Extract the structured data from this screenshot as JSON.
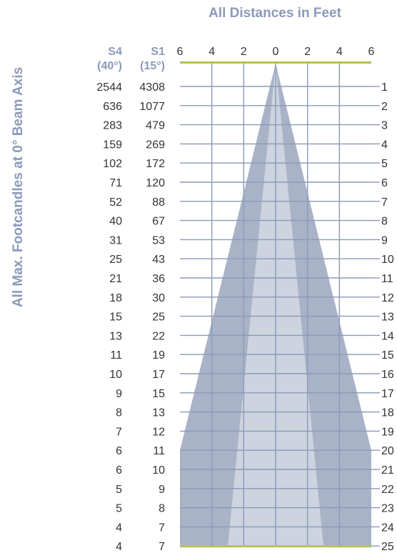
{
  "title": "All Distances in Feet",
  "ylabel": "All Max. Footcandles at 0° Beam Axis",
  "columns": [
    {
      "name": "S4",
      "angle": "(40°)"
    },
    {
      "name": "S1",
      "angle": "(15°)"
    }
  ],
  "x_ticks": [
    "6",
    "4",
    "2",
    "0",
    "2",
    "4",
    "6"
  ],
  "distances": [
    "1",
    "2",
    "3",
    "4",
    "5",
    "6",
    "7",
    "8",
    "9",
    "10",
    "11",
    "12",
    "13",
    "14",
    "15",
    "16",
    "17",
    "18",
    "19",
    "20",
    "21",
    "22",
    "23",
    "24",
    "25"
  ],
  "s4_values": [
    "2544",
    "636",
    "283",
    "159",
    "102",
    "71",
    "52",
    "40",
    "31",
    "25",
    "21",
    "18",
    "15",
    "13",
    "11",
    "10",
    "9",
    "8",
    "7",
    "6",
    "6",
    "5",
    "5",
    "4",
    "4"
  ],
  "s1_values": [
    "4308",
    "1077",
    "479",
    "269",
    "172",
    "120",
    "88",
    "67",
    "53",
    "43",
    "36",
    "30",
    "25",
    "22",
    "19",
    "17",
    "15",
    "13",
    "12",
    "11",
    "10",
    "9",
    "8",
    "7",
    "7"
  ],
  "colors": {
    "title": "#8a9ab8",
    "grid": "#8a9ab8",
    "outer_cone": "#a9b3c7",
    "inner_cone": "#cdd3df",
    "edge_bar": "#b4c15a",
    "text": "#333333"
  },
  "chart_data": {
    "type": "beam-spread",
    "x_range_ft": [
      -6,
      6
    ],
    "distance_range_ft": [
      0,
      25
    ],
    "beams": [
      {
        "name": "S4",
        "beam_angle_deg": 40,
        "half_width_at_20ft": 6
      },
      {
        "name": "S1",
        "beam_angle_deg": 15,
        "half_width_at_25ft": 3
      }
    ]
  }
}
